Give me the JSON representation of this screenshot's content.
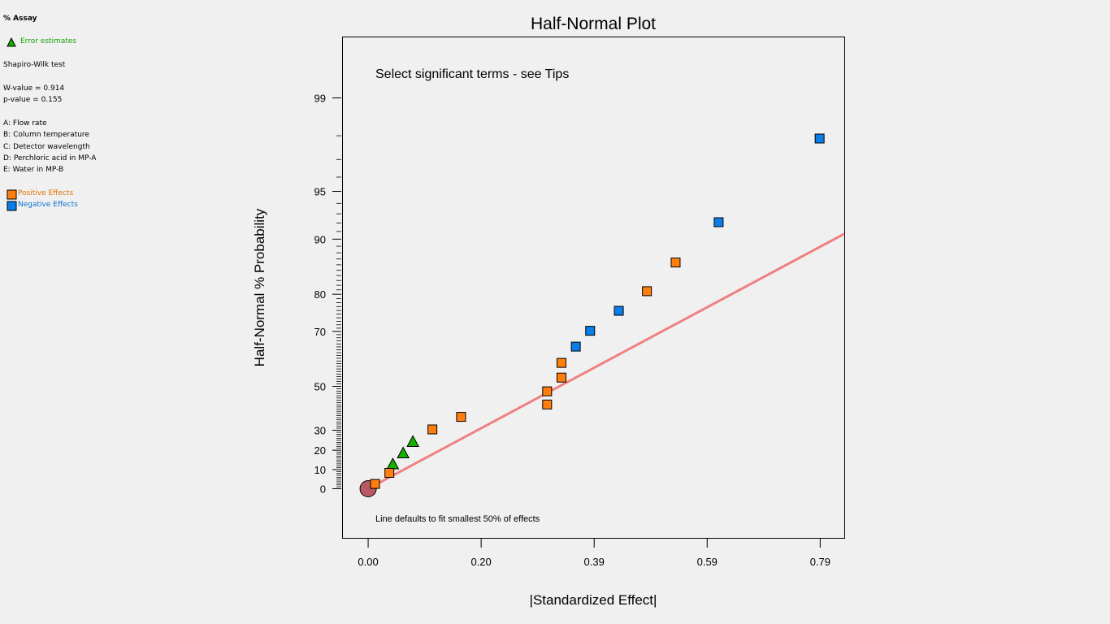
{
  "legend": {
    "response": "% Assay",
    "error_label": "Error estimates",
    "test_name": "Shapiro-Wilk test",
    "w_value": "W-value = 0.914",
    "p_value": "p-value = 0.155",
    "factors": [
      "A: Flow rate",
      "B: Column temperature",
      "C: Detector wavelength",
      "D: Perchloric acid in MP-A",
      "E: Water in MP-B"
    ],
    "positive_label": "Positive Effects",
    "negative_label": "Negative Effects"
  },
  "colors": {
    "positive": "#ff7f0e",
    "negative": "#0a7ee8",
    "error": "#13b000",
    "fit_line": "#f08080",
    "origin": "#b85a64",
    "error_text": "#13a000",
    "positive_text": "#e07000",
    "negative_text": "#0a70d0"
  },
  "chart_data": {
    "type": "scatter",
    "title": "Half-Normal Plot",
    "xlabel": "|Standardized Effect|",
    "ylabel": "Half-Normal % Probability",
    "annotation_top": "Select significant terms - see Tips",
    "annotation_bottom": "Line defaults to fit smallest 50% of effects",
    "x_ticks": [
      {
        "value": 0.0,
        "label": "0.00"
      },
      {
        "value": 0.197,
        "label": "0.20"
      },
      {
        "value": 0.394,
        "label": "0.39"
      },
      {
        "value": 0.591,
        "label": "0.59"
      },
      {
        "value": 0.788,
        "label": "0.79"
      }
    ],
    "y_labeled_ticks": [
      {
        "value": 0,
        "label": "0"
      },
      {
        "value": 10,
        "label": "10"
      },
      {
        "value": 20,
        "label": "20"
      },
      {
        "value": 30,
        "label": "30"
      },
      {
        "value": 50,
        "label": "50"
      },
      {
        "value": 70,
        "label": "70"
      },
      {
        "value": 80,
        "label": "80"
      },
      {
        "value": 90,
        "label": "90"
      },
      {
        "value": 95,
        "label": "95"
      },
      {
        "value": 99,
        "label": "99"
      }
    ],
    "xlim": [
      -0.044,
      0.83
    ],
    "series": [
      {
        "name": "Origin",
        "kind": "origin",
        "points": [
          {
            "x": 0.0,
            "y": 0
          }
        ]
      },
      {
        "name": "Error estimates",
        "kind": "error",
        "points": [
          {
            "x": 0.043,
            "y": 12.9
          },
          {
            "x": 0.061,
            "y": 18.6
          },
          {
            "x": 0.078,
            "y": 24.4
          }
        ]
      },
      {
        "name": "Positive Effects",
        "kind": "positive",
        "points": [
          {
            "x": 0.012,
            "y": 2.5
          },
          {
            "x": 0.037,
            "y": 8.3
          },
          {
            "x": 0.112,
            "y": 30.4
          },
          {
            "x": 0.162,
            "y": 36.4
          },
          {
            "x": 0.312,
            "y": 42.1
          },
          {
            "x": 0.312,
            "y": 47.9
          },
          {
            "x": 0.337,
            "y": 53.6
          },
          {
            "x": 0.337,
            "y": 59.3
          },
          {
            "x": 0.486,
            "y": 80.7
          },
          {
            "x": 0.536,
            "y": 86.4
          }
        ]
      },
      {
        "name": "Negative Effects",
        "kind": "negative",
        "points": [
          {
            "x": 0.362,
            "y": 65.1
          },
          {
            "x": 0.387,
            "y": 70.2
          },
          {
            "x": 0.437,
            "y": 75.9
          },
          {
            "x": 0.611,
            "y": 92.1
          },
          {
            "x": 0.787,
            "y": 97.9
          }
        ]
      }
    ],
    "fit_line": {
      "x": [
        0.0,
        0.83
      ],
      "y": [
        0,
        90.7
      ]
    }
  }
}
